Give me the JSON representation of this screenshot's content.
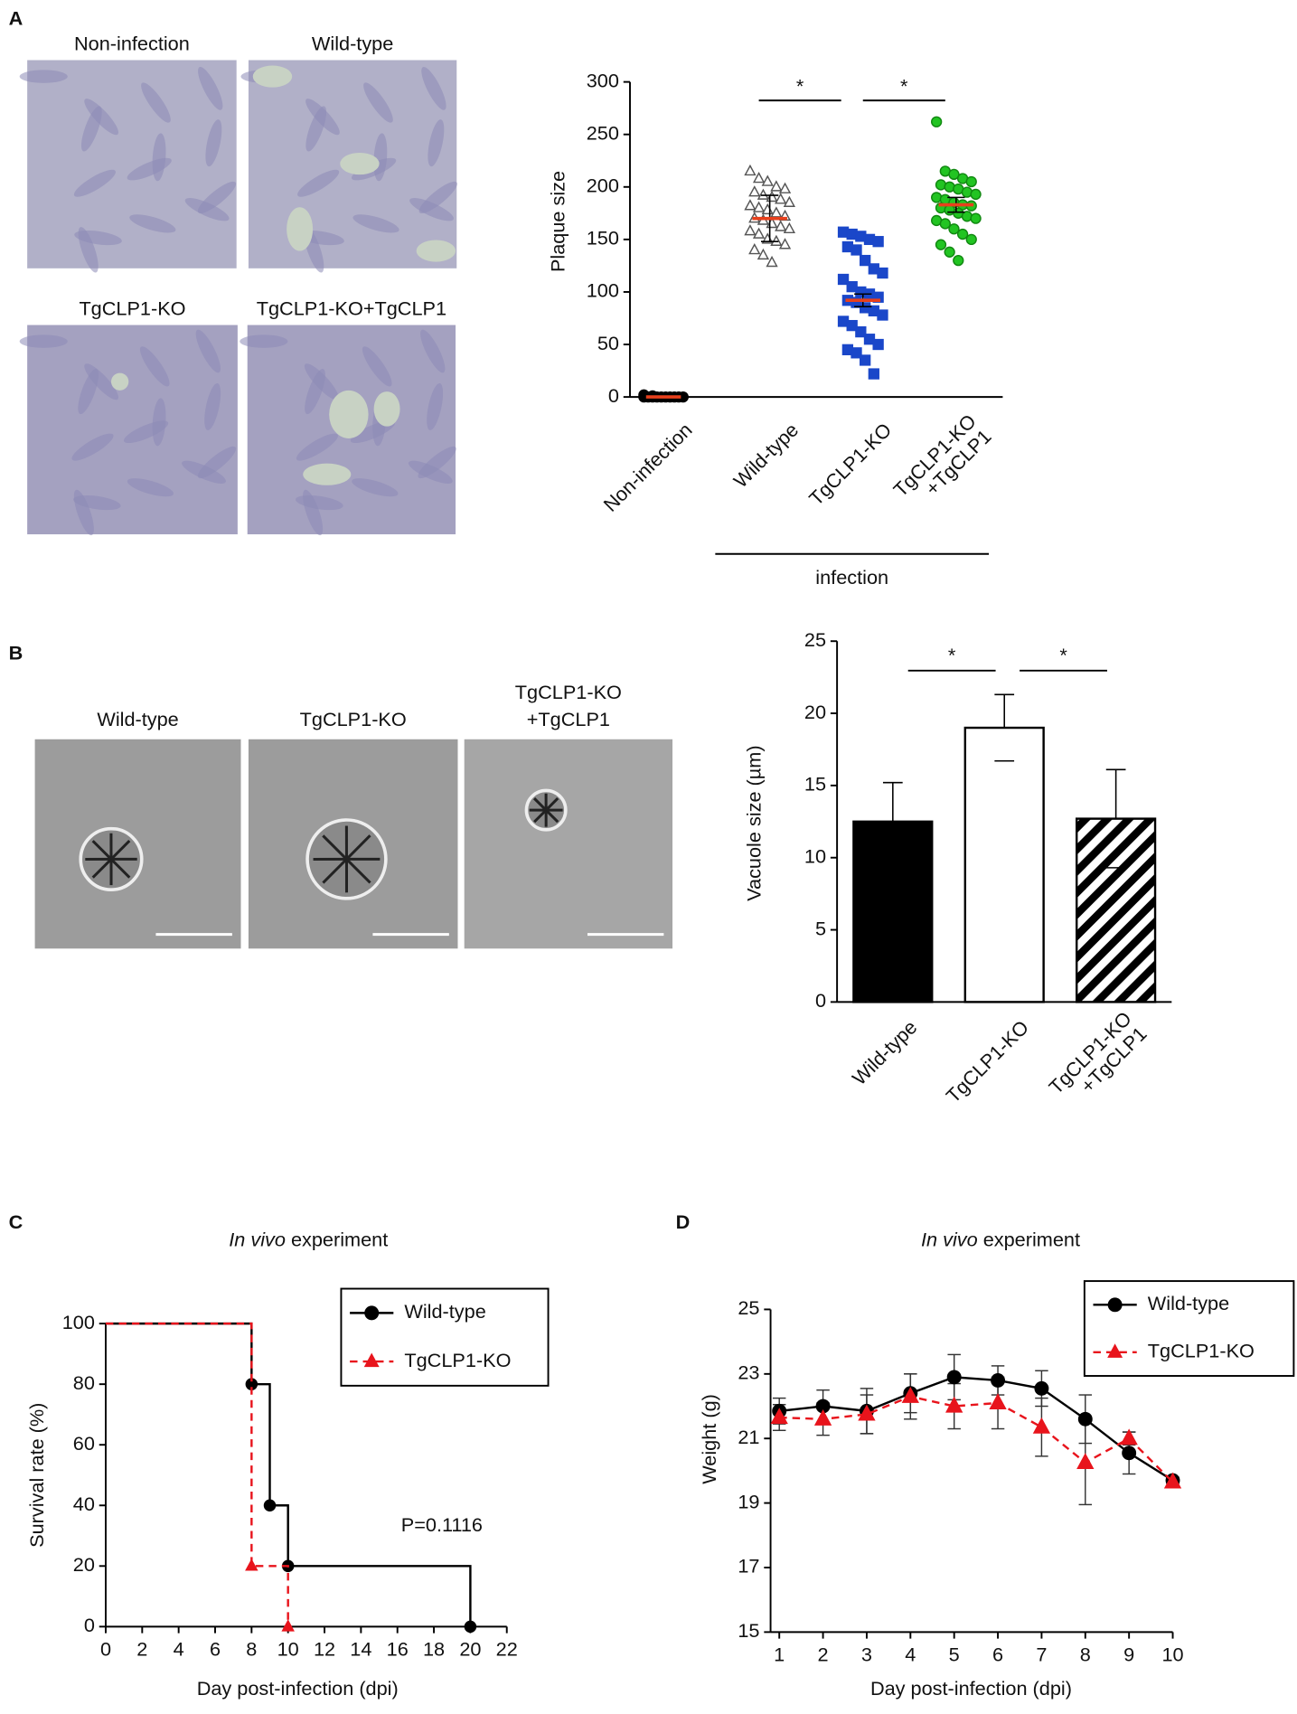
{
  "figure": {
    "panel_labels": [
      "A",
      "B",
      "C",
      "D"
    ],
    "images_a": [
      "Non-infection",
      "Wild-type",
      "TgCLP1-KO",
      "TgCLP1-KO+TgCLP1"
    ],
    "images_b": [
      [
        "Wild-type"
      ],
      [
        "TgCLP1-KO"
      ],
      [
        "TgCLP1-KO",
        "+TgCLP1"
      ]
    ]
  },
  "chart_data": [
    {
      "type": "dot-plot",
      "y_label": "Plaque size",
      "categories": [
        "Non-infection",
        "Wild-type",
        "TgCLP1-KO",
        [
          "TgCLP1-KO",
          "+TgCLP1"
        ]
      ],
      "group_label": "infection",
      "values": [
        [
          0,
          0,
          0,
          0,
          0,
          0,
          0,
          0,
          0,
          0,
          2,
          1
        ],
        [
          215,
          208,
          205,
          200,
          198,
          195,
          192,
          190,
          188,
          185,
          182,
          180,
          178,
          175,
          172,
          170,
          168,
          165,
          162,
          160,
          158,
          155,
          150,
          148,
          145,
          140,
          135,
          128
        ],
        [
          157,
          155,
          153,
          150,
          148,
          143,
          140,
          130,
          122,
          118,
          112,
          105,
          100,
          98,
          95,
          92,
          90,
          85,
          82,
          78,
          72,
          68,
          62,
          55,
          50,
          45,
          42,
          35,
          22
        ],
        [
          262,
          215,
          212,
          208,
          205,
          202,
          200,
          198,
          195,
          193,
          190,
          188,
          185,
          183,
          182,
          180,
          178,
          175,
          172,
          170,
          168,
          165,
          160,
          155,
          150,
          145,
          138,
          130
        ]
      ],
      "means": [
        0,
        170,
        92,
        183
      ],
      "errors": [
        0,
        22,
        6,
        7
      ],
      "colors": [
        "#000000",
        "#555555",
        "#1a47c9",
        "#22c422"
      ],
      "markers": [
        "circle",
        "triangle",
        "square",
        "circle"
      ],
      "filled": [
        true,
        false,
        true,
        true
      ],
      "mean_color": "#e8401c",
      "ylim": [
        0,
        300
      ],
      "yticks": [
        0,
        50,
        100,
        150,
        200,
        250,
        300
      ],
      "significance": [
        "*",
        "*"
      ]
    },
    {
      "type": "bar",
      "y_label": "Vacuole size (µm)",
      "categories": [
        "Wild-type",
        "TgCLP1-KO",
        [
          "TgCLP1-KO",
          "+TgCLP1"
        ]
      ],
      "values": [
        12.5,
        19.0,
        12.7
      ],
      "errors": [
        2.7,
        2.3,
        3.4
      ],
      "fills": [
        "#000000",
        "#ffffff",
        "hatch"
      ],
      "ylim": [
        0,
        25
      ],
      "yticks": [
        0,
        5,
        10,
        15,
        20,
        25
      ],
      "significance": [
        "*",
        "*"
      ]
    },
    {
      "type": "step",
      "title": {
        "italic": "In vivo",
        "text": "experiment"
      },
      "x_label": "Day post-infection (dpi)",
      "y_label": "Survival rate (%)",
      "annotation": "P=0.1116",
      "series": [
        {
          "name": "Wild-type",
          "color": "#000000",
          "marker": "circle",
          "line_style": "solid",
          "x": [
            0,
            8,
            9,
            10,
            20
          ],
          "values": [
            100,
            80,
            40,
            20,
            0
          ]
        },
        {
          "name": "TgCLP1-KO",
          "color": "#e8141c",
          "marker": "triangle",
          "line_style": "dashed",
          "x": [
            0,
            8,
            10
          ],
          "values": [
            100,
            20,
            0
          ]
        }
      ],
      "xlim": [
        0,
        22
      ],
      "xticks": [
        0,
        2,
        4,
        6,
        8,
        10,
        12,
        14,
        16,
        18,
        20,
        22
      ],
      "ylim": [
        0,
        100
      ],
      "yticks": [
        0,
        20,
        40,
        60,
        80,
        100
      ]
    },
    {
      "type": "line",
      "title": {
        "italic": "In vivo",
        "text": "experiment"
      },
      "x_label": "Day post-infection (dpi)",
      "y_label": "Weight (g)",
      "x": [
        1,
        2,
        3,
        4,
        5,
        6,
        7,
        8,
        9,
        10
      ],
      "series": [
        {
          "name": "Wild-type",
          "color": "#000000",
          "marker": "circle",
          "line_style": "solid",
          "values": [
            21.85,
            22.0,
            21.85,
            22.4,
            22.9,
            22.8,
            22.55,
            21.6,
            20.55,
            19.7
          ],
          "errors": [
            0.4,
            0.5,
            0.7,
            0.6,
            0.7,
            0.45,
            0.55,
            0.75,
            0.65,
            0.1
          ]
        },
        {
          "name": "TgCLP1-KO",
          "color": "#e8141c",
          "marker": "triangle",
          "line_style": "dashed",
          "values": [
            21.65,
            21.6,
            21.75,
            22.3,
            22.0,
            22.1,
            21.35,
            20.25,
            21.0,
            19.65
          ],
          "errors": [
            0.4,
            0.5,
            0.6,
            0.7,
            0.7,
            0.8,
            0.9,
            1.3,
            0.2,
            0.1
          ]
        }
      ],
      "xlim": [
        1,
        10
      ],
      "xticks": [
        1,
        2,
        3,
        4,
        5,
        6,
        7,
        8,
        9,
        10
      ],
      "ylim": [
        15,
        25
      ],
      "yticks": [
        15,
        17,
        19,
        21,
        23,
        25
      ]
    }
  ]
}
